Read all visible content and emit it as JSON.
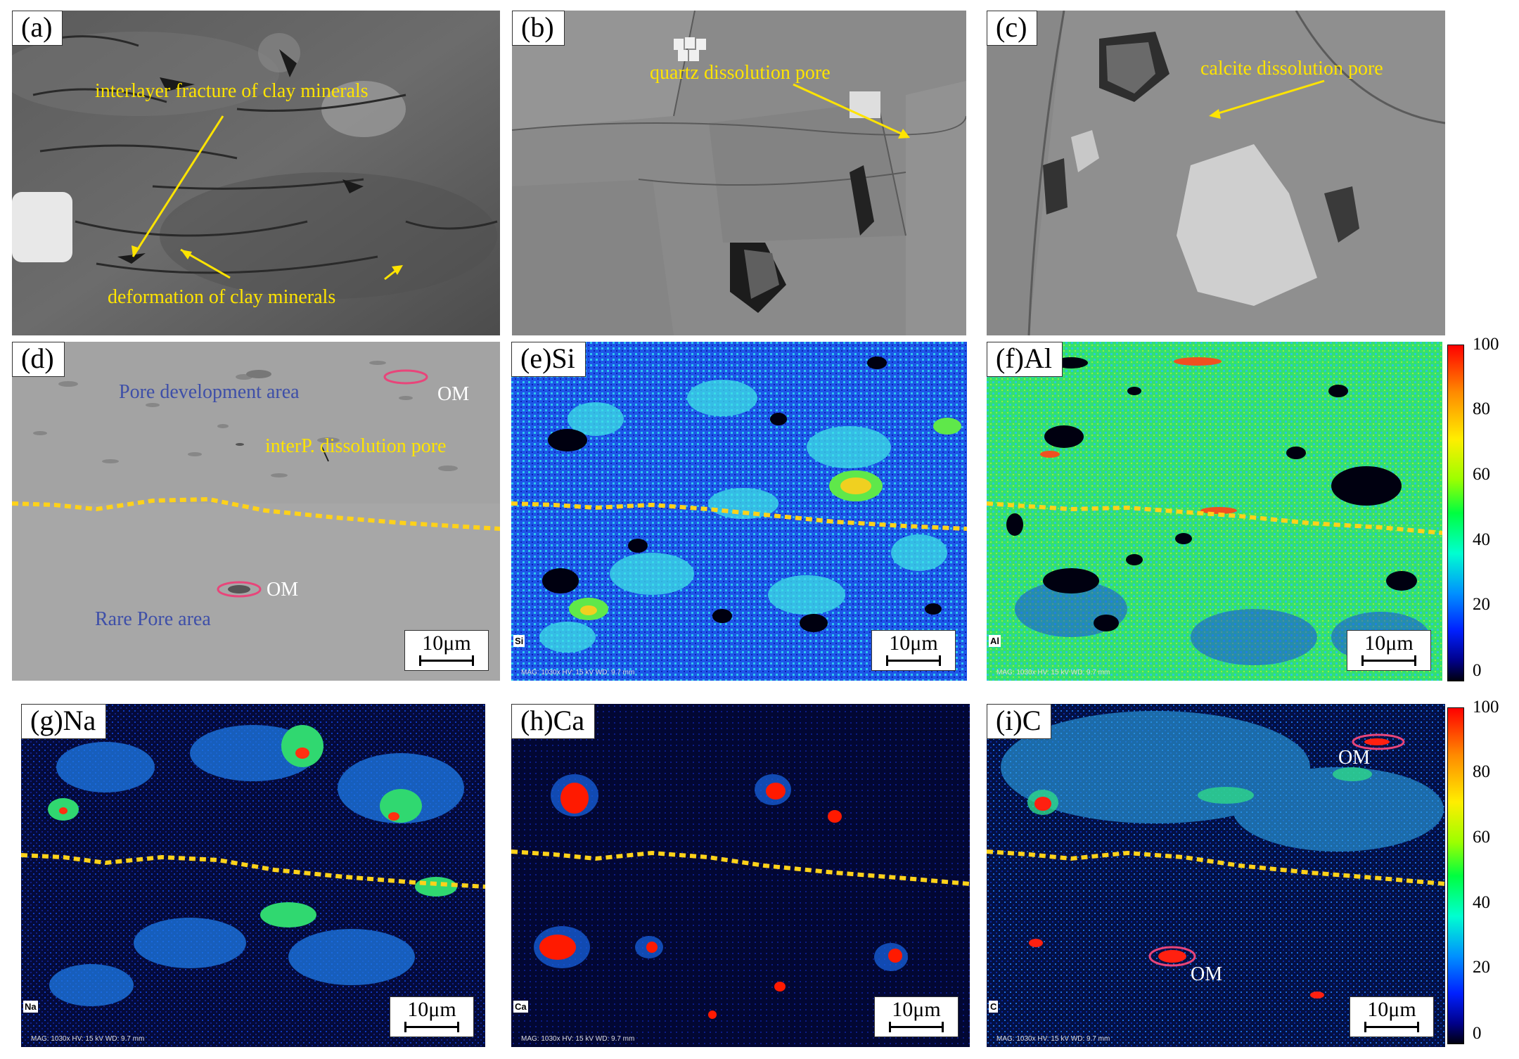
{
  "panels": {
    "a": {
      "label": "(a)",
      "ann1": "interlayer fracture of clay minerals",
      "ann2": "deformation of clay minerals"
    },
    "b": {
      "label": "(b)",
      "ann1": "quartz dissolution pore"
    },
    "c": {
      "label": "(c)",
      "ann1": "calcite dissolution pore"
    },
    "d": {
      "label": "(d)",
      "ann_pore_area": "Pore development area",
      "ann_dissolution": "interP. dissolution pore",
      "ann_rare": "Rare Pore area",
      "om_top": "OM",
      "om_bottom": "OM",
      "scale": "10μm"
    },
    "e": {
      "label": "(e)Si",
      "element_tag": "Si",
      "scale": "10μm",
      "meta": "MAG: 1030x   HV: 15 kV   WD: 9.7 mm"
    },
    "f": {
      "label": "(f)Al",
      "element_tag": "Al",
      "scale": "10μm",
      "meta": "MAG: 1030x   HV: 15 kV   WD: 9.7 mm"
    },
    "g": {
      "label": "(g)Na",
      "element_tag": "Na",
      "scale": "10μm",
      "meta": "MAG: 1030x   HV: 15 kV   WD: 9.7 mm"
    },
    "h": {
      "label": "(h)Ca",
      "element_tag": "Ca",
      "scale": "10μm",
      "meta": "MAG: 1030x   HV: 15 kV   WD: 9.7 mm"
    },
    "i": {
      "label": "(i)C",
      "element_tag": "C",
      "om_top": "OM",
      "om_bottom": "OM",
      "scale": "10μm",
      "meta": "MAG: 1030x   HV: 15 kV   WD: 9.7 mm"
    }
  },
  "colorbar_ticks": [
    "100",
    "80",
    "60",
    "40",
    "20",
    "0"
  ],
  "colors": {
    "annotation": "#ffe400",
    "boundary_line": "#ffd21a",
    "om_ellipse": "#e8457a",
    "area_text": "#3e4fa8"
  }
}
